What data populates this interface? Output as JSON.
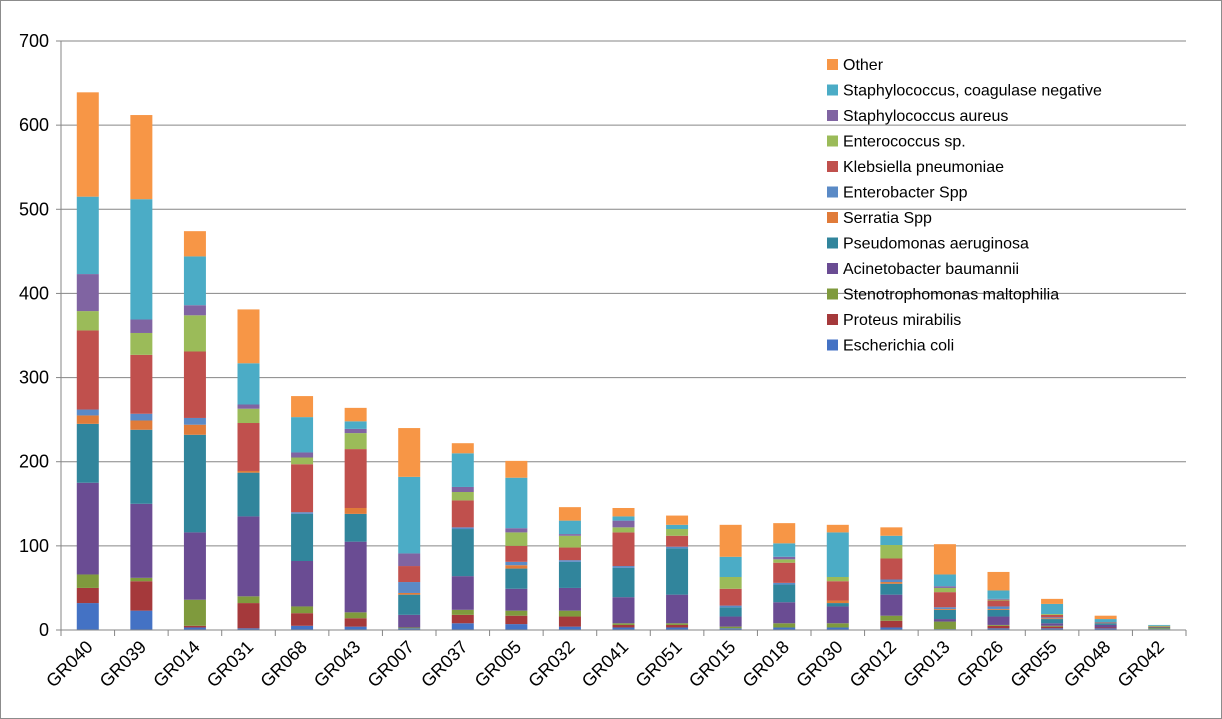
{
  "chart_data": {
    "type": "bar",
    "stacked": true,
    "title": "",
    "xlabel": "",
    "ylabel": "",
    "ylim": [
      0,
      700
    ],
    "yticks": [
      0,
      100,
      200,
      300,
      400,
      500,
      600,
      700
    ],
    "grid": true,
    "legend_position": "top-right",
    "categories": [
      "GR040",
      "GR039",
      "GR014",
      "GR031",
      "GR068",
      "GR043",
      "GR007",
      "GR037",
      "GR005",
      "GR032",
      "GR041",
      "GR051",
      "GR015",
      "GR018",
      "GR030",
      "GR012",
      "GR013",
      "GR026",
      "GR055",
      "GR048",
      "GR042"
    ],
    "series": [
      {
        "name": "Escherichia coli",
        "color": "#4472C4",
        "values": [
          32,
          23,
          3,
          2,
          5,
          4,
          2,
          8,
          7,
          4,
          3,
          3,
          2,
          3,
          3,
          3,
          1,
          2,
          2,
          2,
          1
        ]
      },
      {
        "name": "Proteus mirabilis",
        "color": "#A5393B",
        "values": [
          18,
          35,
          2,
          30,
          15,
          10,
          0,
          10,
          10,
          12,
          3,
          3,
          0,
          0,
          0,
          8,
          0,
          3,
          2,
          1,
          0
        ]
      },
      {
        "name": "Stenotrophomonas maltophilia",
        "color": "#7F9A3D",
        "values": [
          16,
          4,
          31,
          8,
          8,
          7,
          1,
          6,
          6,
          7,
          2,
          2,
          2,
          5,
          5,
          6,
          9,
          1,
          1,
          0,
          1
        ]
      },
      {
        "name": "Acinetobacter baumannii",
        "color": "#6A4C93",
        "values": [
          109,
          88,
          80,
          95,
          54,
          84,
          15,
          40,
          26,
          27,
          31,
          34,
          12,
          25,
          20,
          25,
          3,
          10,
          3,
          3,
          0
        ]
      },
      {
        "name": "Pseudomonas aeruginosa",
        "color": "#31859C",
        "values": [
          70,
          88,
          116,
          52,
          56,
          33,
          24,
          56,
          24,
          31,
          35,
          55,
          11,
          21,
          4,
          13,
          11,
          8,
          5,
          2,
          1
        ]
      },
      {
        "name": "Serratia Spp",
        "color": "#E07B39",
        "values": [
          10,
          11,
          12,
          2,
          0,
          7,
          2,
          0,
          4,
          0,
          0,
          0,
          0,
          0,
          3,
          2,
          1,
          1,
          1,
          0,
          0
        ]
      },
      {
        "name": "Enterobacter Spp",
        "color": "#5A8AC6",
        "values": [
          7,
          8,
          8,
          0,
          2,
          0,
          13,
          2,
          4,
          2,
          2,
          2,
          2,
          2,
          0,
          3,
          2,
          3,
          1,
          0,
          0
        ]
      },
      {
        "name": "Klebsiella pneumoniae",
        "color": "#C0504D",
        "values": [
          94,
          70,
          79,
          57,
          57,
          70,
          19,
          32,
          19,
          15,
          40,
          13,
          20,
          24,
          23,
          25,
          18,
          7,
          3,
          1,
          1
        ]
      },
      {
        "name": "Enterococcus sp.",
        "color": "#9BBB59",
        "values": [
          23,
          26,
          43,
          17,
          8,
          19,
          0,
          10,
          16,
          14,
          6,
          8,
          14,
          4,
          5,
          16,
          5,
          1,
          1,
          0,
          1
        ]
      },
      {
        "name": "Staphylococcus aureus",
        "color": "#8064A2",
        "values": [
          44,
          16,
          12,
          5,
          6,
          5,
          15,
          6,
          5,
          2,
          8,
          0,
          0,
          3,
          0,
          0,
          2,
          1,
          0,
          0,
          0
        ]
      },
      {
        "name": "Staphylococcus, coagulase negative",
        "color": "#4BACC6",
        "values": [
          92,
          143,
          58,
          49,
          42,
          9,
          91,
          40,
          60,
          16,
          5,
          5,
          24,
          16,
          53,
          11,
          14,
          10,
          12,
          4,
          1
        ]
      },
      {
        "name": "Other",
        "color": "#F79646",
        "values": [
          124,
          100,
          30,
          64,
          25,
          16,
          58,
          12,
          20,
          16,
          10,
          11,
          38,
          24,
          9,
          10,
          36,
          22,
          6,
          4,
          0
        ]
      }
    ]
  }
}
